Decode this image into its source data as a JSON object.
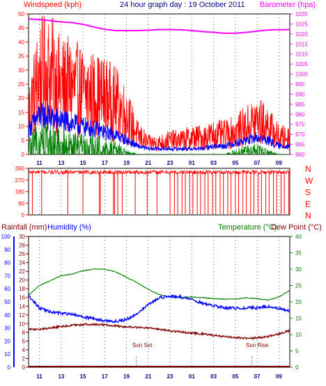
{
  "chart_data": [
    {
      "type": "line",
      "title": "24 hour graph day : 19 October 2011",
      "left_axis_label": "Windspeed (kph)",
      "right_axis_label": "Barometer (hpa)",
      "x_ticks": [
        "11",
        "13",
        "15",
        "17",
        "19",
        "21",
        "23",
        "01",
        "03",
        "05",
        "07",
        "09"
      ],
      "left_ticks": [
        "0",
        "5",
        "10",
        "15",
        "20",
        "25",
        "30",
        "35",
        "40",
        "45",
        "50"
      ],
      "right_ticks": [
        "960",
        "965",
        "970",
        "975",
        "980",
        "985",
        "990",
        "995",
        "1000",
        "1005",
        "1010",
        "1015",
        "1020",
        "1025",
        "1030"
      ],
      "ylim_left": [
        0,
        50
      ],
      "ylim_right": [
        960,
        1030
      ],
      "series": [
        {
          "key": "gust",
          "color": "#ff0000",
          "axis": "left",
          "x": [
            0,
            1,
            2,
            3,
            4,
            5,
            6,
            7,
            8,
            9,
            10,
            11,
            12,
            13,
            14,
            15,
            16,
            17,
            18,
            19,
            20,
            21,
            22,
            23,
            24
          ],
          "y": [
            15,
            28,
            29,
            24,
            24,
            22,
            21,
            20,
            18,
            14,
            7,
            4,
            4,
            5,
            5,
            6,
            6,
            7,
            7,
            8,
            10,
            12,
            10,
            6,
            6
          ]
        },
        {
          "key": "average",
          "color": "#0000ff",
          "axis": "left",
          "x": [
            0,
            1,
            2,
            3,
            4,
            5,
            6,
            7,
            8,
            9,
            10,
            11,
            12,
            13,
            14,
            15,
            16,
            17,
            18,
            19,
            20,
            21,
            22,
            23,
            24
          ],
          "y": [
            9,
            14,
            13,
            12,
            11,
            10,
            9,
            8,
            7,
            5,
            3,
            2,
            2,
            2,
            2,
            2,
            2,
            3,
            3,
            4,
            5,
            6,
            5,
            3,
            3
          ]
        },
        {
          "key": "lull",
          "color": "#008000",
          "axis": "left",
          "x": [
            0,
            1,
            2,
            3,
            4,
            5,
            6,
            7,
            8,
            9,
            10,
            11,
            12,
            13,
            14,
            15,
            16,
            17,
            18,
            19,
            20,
            21,
            22,
            23,
            24
          ],
          "y": [
            3,
            7,
            6,
            5,
            5,
            4,
            4,
            3,
            3,
            1,
            0,
            0,
            0,
            0,
            0,
            0,
            0,
            0,
            0,
            1,
            2,
            2,
            1,
            0,
            0
          ]
        },
        {
          "key": "barometer",
          "color": "#ff00ff",
          "axis": "right",
          "x": [
            0,
            1,
            2,
            3,
            4,
            5,
            6,
            7,
            8,
            9,
            10,
            11,
            12,
            13,
            14,
            15,
            16,
            17,
            18,
            19,
            20,
            21,
            22,
            23,
            24
          ],
          "y": [
            1027.5,
            1027.2,
            1026.6,
            1026,
            1025.7,
            1024.8,
            1023.5,
            1022.3,
            1021.7,
            1021.7,
            1021.7,
            1021.9,
            1022.2,
            1022.2,
            1022.1,
            1021.7,
            1021.2,
            1020.8,
            1020.4,
            1020.4,
            1020.8,
            1021.4,
            1022.0,
            1022.1,
            1022.2
          ]
        }
      ]
    },
    {
      "type": "scatter",
      "title": "",
      "direction_ticks_left": [
        "0",
        "90",
        "180",
        "270",
        "360"
      ],
      "direction_labels_right": [
        "N",
        "W",
        "S",
        "E",
        "N"
      ],
      "ylim": [
        0,
        360
      ],
      "color": "#ff0000",
      "baseline": 330,
      "dip_positions": [
        0.35,
        1.2,
        3.6,
        5.0,
        6.5,
        6.6,
        7.8,
        7.9,
        8.2,
        8.6,
        9.8,
        10.9,
        11.8,
        13.0,
        13.4,
        13.7,
        14.1,
        14.4,
        14.8,
        15.1,
        15.5,
        15.8,
        16.2,
        16.5,
        16.9,
        17.2,
        17.6,
        17.9,
        18.3,
        18.6,
        19.0,
        19.3,
        19.7,
        20.0,
        20.4,
        20.7,
        21.1,
        21.4,
        21.8,
        22.1,
        22.5,
        22.8,
        23.2,
        23.5,
        23.9
      ]
    },
    {
      "type": "line",
      "title": "",
      "labels": {
        "rainfall": "Rainfall (mm)",
        "humidity": "Humidity (%)",
        "temperature": "Temperature (°C)",
        "dew_point": "Dew Point (°C)"
      },
      "humidity_ticks": [
        "0",
        "10",
        "20",
        "30",
        "40",
        "50",
        "60",
        "70",
        "80",
        "90",
        "100"
      ],
      "rain_ticks": [
        "0",
        "2",
        "4",
        "6",
        "8",
        "10",
        "12",
        "14",
        "16",
        "18",
        "20",
        "22",
        "24",
        "26",
        "28",
        "30"
      ],
      "temp_ticks": [
        "0",
        "5",
        "10",
        "15",
        "20",
        "25",
        "30",
        "35",
        "40"
      ],
      "ylim_temp": [
        0,
        40
      ],
      "annotations": {
        "sun_set": "Sun Set",
        "sun_rise": "Sun Rise"
      },
      "series": [
        {
          "key": "temperature",
          "color": "#008000",
          "axis": "temp",
          "x": [
            0,
            1,
            2,
            3,
            4,
            5,
            6,
            7,
            8,
            9,
            10,
            11,
            12,
            13,
            14,
            15,
            16,
            17,
            18,
            19,
            20,
            21,
            22,
            23,
            24
          ],
          "y": [
            22,
            25,
            26.5,
            28,
            28.5,
            29.5,
            30,
            30,
            29.2,
            27.5,
            25.8,
            23.8,
            22.2,
            21.5,
            21.3,
            21.5,
            21.3,
            21,
            20.8,
            20.9,
            21.2,
            21.0,
            20.5,
            21.5,
            23.5
          ]
        },
        {
          "key": "humidity",
          "color": "#0000ff",
          "axis": "temp",
          "x": [
            0,
            1,
            2,
            3,
            4,
            5,
            6,
            7,
            8,
            9,
            10,
            11,
            12,
            13,
            14,
            15,
            16,
            17,
            18,
            19,
            20,
            21,
            22,
            23,
            24
          ],
          "y": [
            22,
            18,
            17,
            16.5,
            16.2,
            15.5,
            14.8,
            14.2,
            14.0,
            14.6,
            16.6,
            19.2,
            21.3,
            21.8,
            21.5,
            20.8,
            19.5,
            18.8,
            18.2,
            18.0,
            18.2,
            18.2,
            18.6,
            18.0,
            17.2
          ]
        },
        {
          "key": "dew_point",
          "color": "#800000",
          "axis": "temp",
          "x": [
            0,
            1,
            2,
            3,
            4,
            5,
            6,
            7,
            8,
            9,
            10,
            11,
            12,
            13,
            14,
            15,
            16,
            17,
            18,
            19,
            20,
            21,
            22,
            23,
            24
          ],
          "y": [
            11.6,
            11.5,
            12.0,
            12.5,
            12.8,
            13.0,
            13.1,
            13.0,
            12.6,
            12.3,
            12.2,
            12.0,
            11.6,
            11.1,
            10.8,
            10.5,
            10.2,
            9.8,
            9.4,
            9.1,
            8.8,
            9.0,
            9.4,
            10.2,
            11.2
          ]
        },
        {
          "key": "rainfall",
          "color": "#800000",
          "axis": "rain",
          "x": [
            0,
            24
          ],
          "y": [
            0,
            0
          ]
        }
      ]
    }
  ]
}
